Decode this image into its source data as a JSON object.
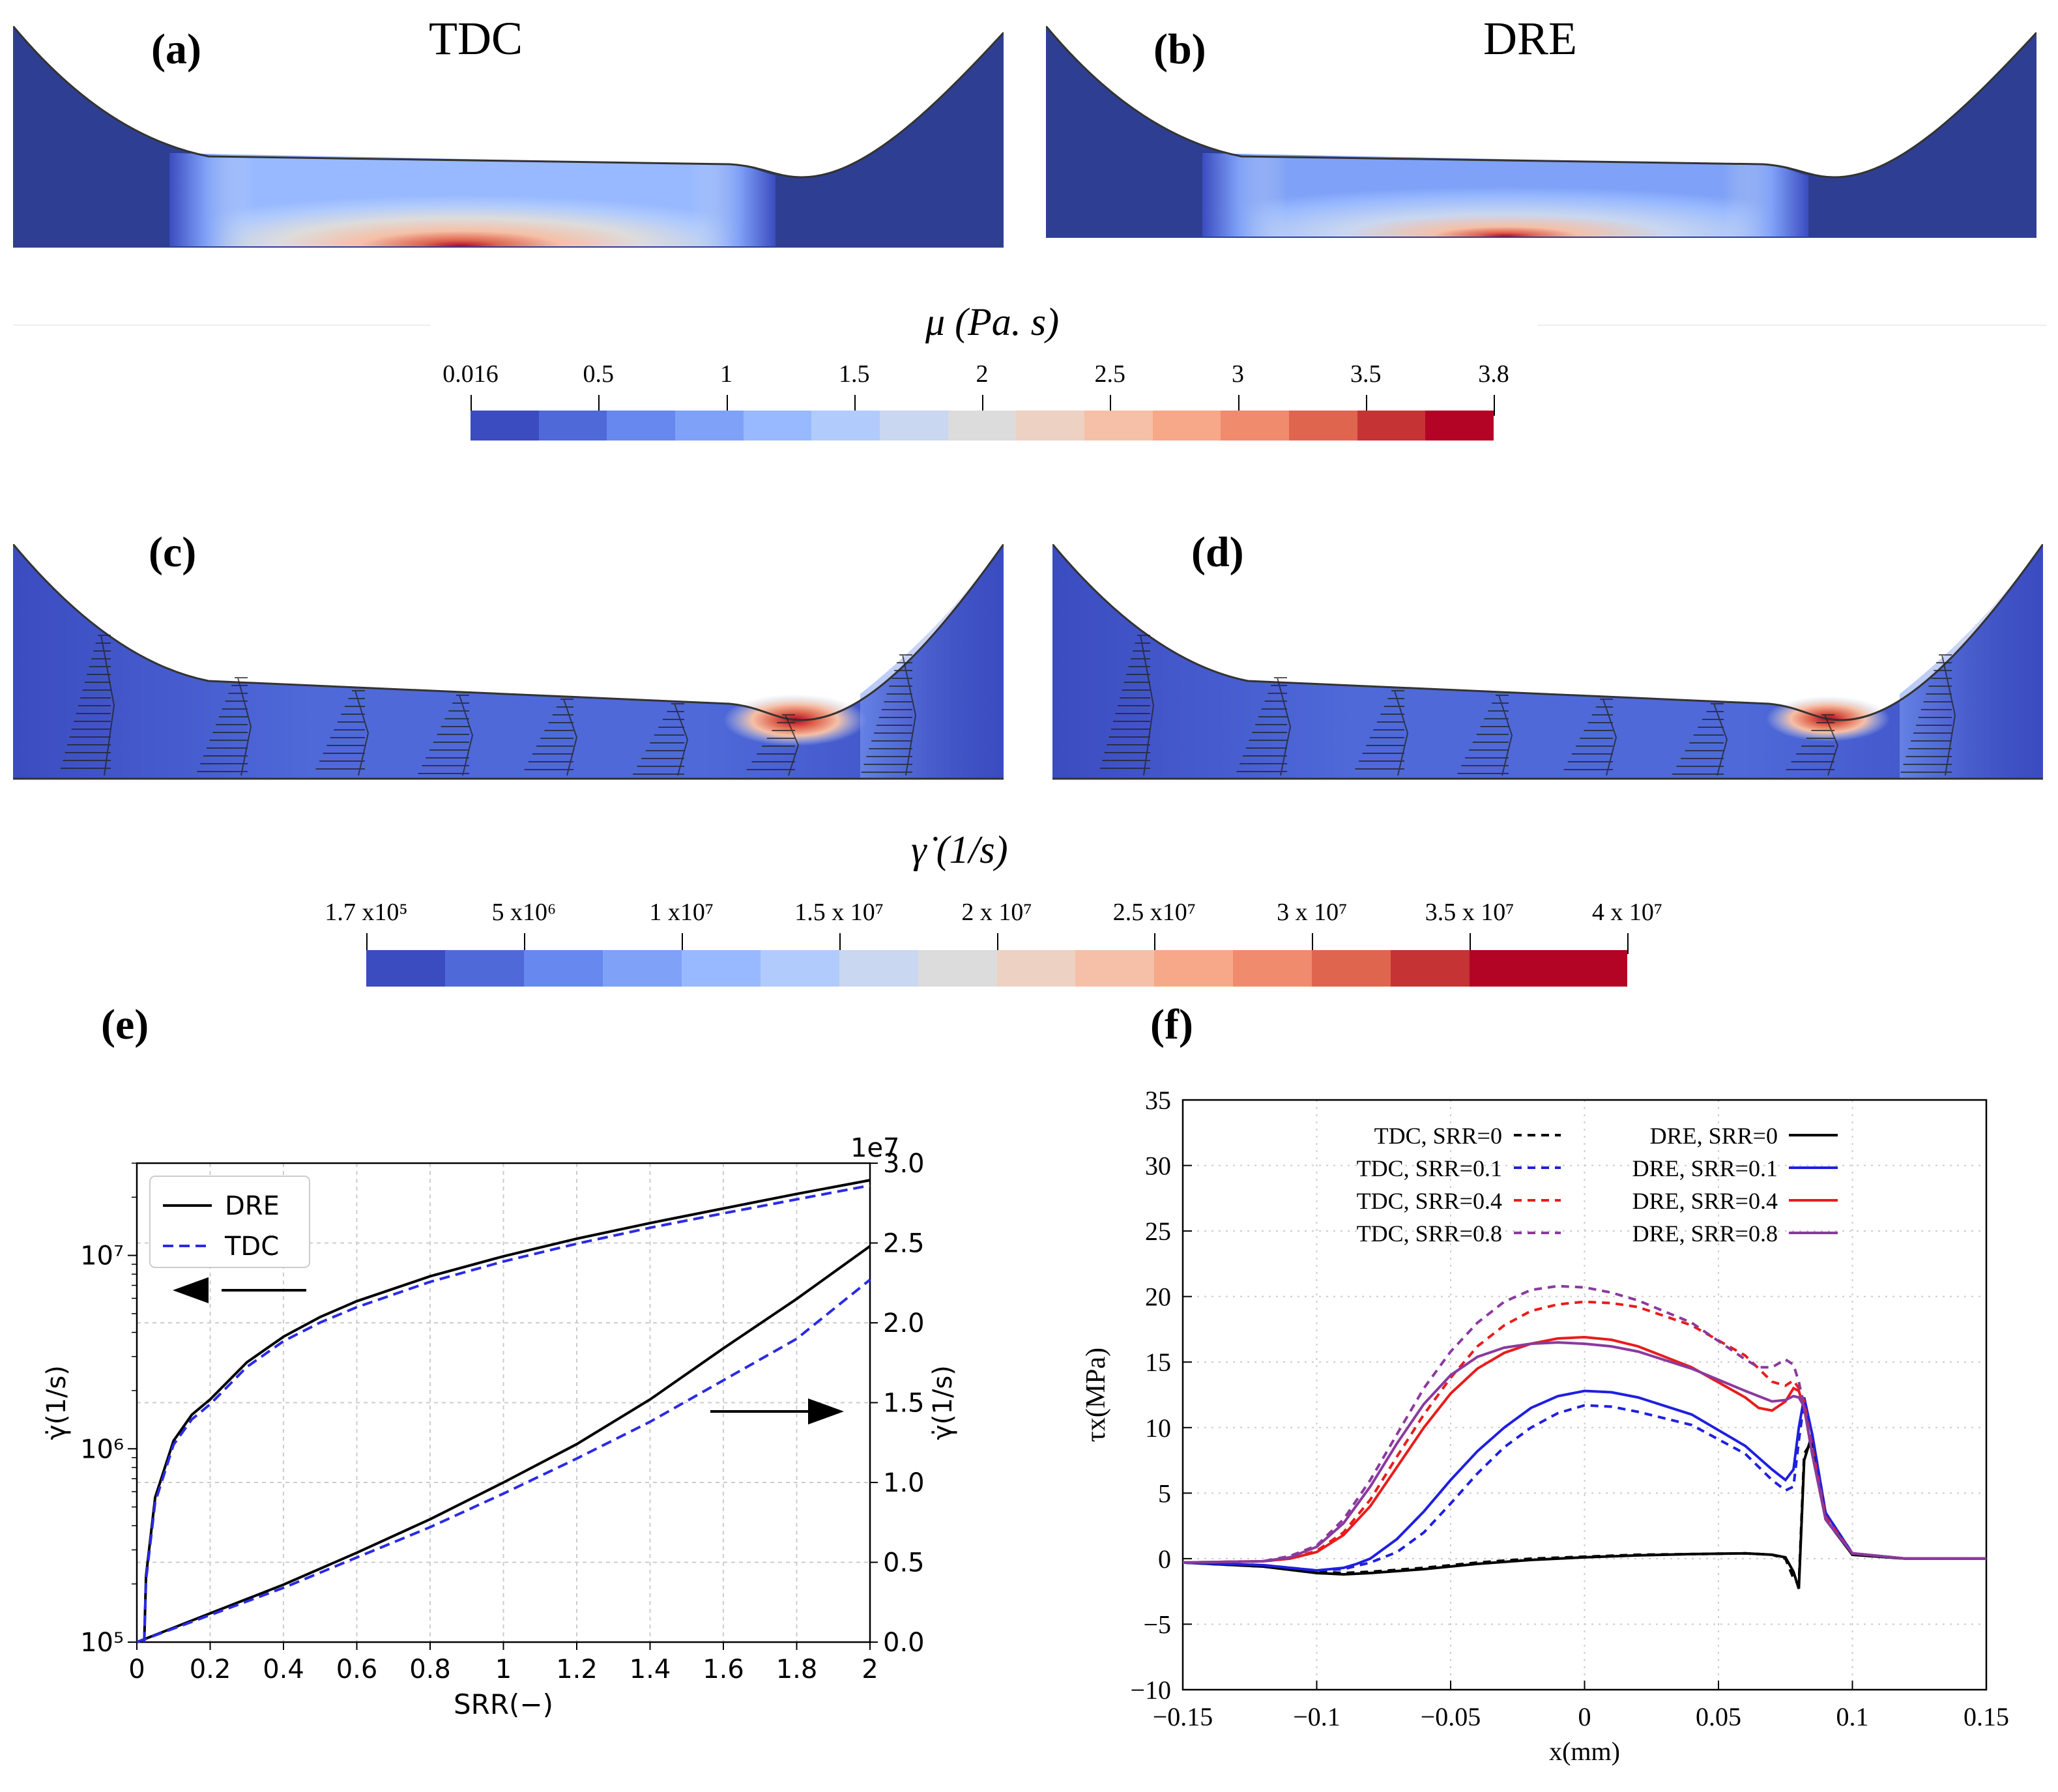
{
  "panels": {
    "a": {
      "label": "(a)",
      "title": "TDC"
    },
    "b": {
      "label": "(b)",
      "title": "DRE"
    },
    "c": {
      "label": "(c)"
    },
    "d": {
      "label": "(d)"
    },
    "e": {
      "label": "(e)"
    },
    "f": {
      "label": "(f)"
    }
  },
  "colorbar_mu": {
    "title": "μ (Pa. s)",
    "ticks": [
      "0.016",
      "0.5",
      "1",
      "1.5",
      "2",
      "2.5",
      "3",
      "3.5",
      "3.8"
    ],
    "colors": [
      "#3b4cc0",
      "#4f69d9",
      "#6788ee",
      "#7fa1f7",
      "#98b9ff",
      "#b1cbfc",
      "#c9d7f0",
      "#dddcdc",
      "#edd1c2",
      "#f5c0a7",
      "#f7a889",
      "#f08b6e",
      "#e0654f",
      "#c53334",
      "#b40426"
    ]
  },
  "colorbar_gamma": {
    "title": "γ̇ (1/s)",
    "ticks": [
      "1.7 x10⁵",
      "5 x10⁶",
      "1 x10⁷",
      "1.5 x 10⁷",
      "2 x 10⁷",
      "2.5 x10⁷",
      "3 x 10⁷",
      "3.5 x 10⁷",
      "4 x 10⁷"
    ],
    "colors": [
      "#3b4cc0",
      "#4f69d9",
      "#6788ee",
      "#7fa1f7",
      "#98b9ff",
      "#b1cbfc",
      "#c9d7f0",
      "#dddcdc",
      "#edd1c2",
      "#f5c0a7",
      "#f7a889",
      "#f08b6e",
      "#e0654f",
      "#c53334",
      "#b40426",
      "#b40426"
    ]
  },
  "chart_data": [
    {
      "id": "e",
      "type": "line",
      "xlabel": "SRR(−)",
      "ylabel_left": "γ̇(1/s)",
      "ylabel_right": "γ̇(1/s)",
      "right_axis_offset_label": "1e7",
      "xlim": [
        0,
        2
      ],
      "ylim_left_log": [
        100000,
        30000000
      ],
      "ylim_right": [
        0,
        3.0
      ],
      "x_ticks": [
        "0",
        "0.2",
        "0.4",
        "0.6",
        "0.8",
        "1",
        "1.2",
        "1.4",
        "1.6",
        "1.8",
        "2"
      ],
      "y_left_ticks": [
        "10⁵",
        "10⁶",
        "10⁷"
      ],
      "y_right_ticks": [
        "0.0",
        "0.5",
        "1.0",
        "1.5",
        "2.0",
        "2.5",
        "3.0"
      ],
      "legend": [
        "DRE",
        "TDC"
      ],
      "legend_position": "top-left",
      "series": [
        {
          "name": "DRE",
          "axis": "left",
          "style": "solid",
          "color": "#000000",
          "x": [
            0.02,
            0.025,
            0.05,
            0.1,
            0.15,
            0.2,
            0.3,
            0.4,
            0.5,
            0.6,
            0.8,
            1.0,
            1.2,
            1.4,
            1.6,
            1.8,
            2.0
          ],
          "y": [
            100000,
            220000,
            560000,
            1100000,
            1500000,
            1800000,
            2800000,
            3800000,
            4800000,
            5800000,
            7800000,
            9900000,
            12200000,
            14700000,
            17500000,
            20800000,
            24500000
          ]
        },
        {
          "name": "TDC",
          "axis": "left",
          "style": "dashed",
          "color": "#2a2ae6",
          "x": [
            0.02,
            0.025,
            0.05,
            0.1,
            0.15,
            0.2,
            0.3,
            0.4,
            0.5,
            0.6,
            0.8,
            1.0,
            1.2,
            1.4,
            1.6,
            1.8,
            2.0
          ],
          "y": [
            100000,
            210000,
            530000,
            1050000,
            1420000,
            1700000,
            2650000,
            3600000,
            4500000,
            5400000,
            7300000,
            9300000,
            11500000,
            13900000,
            16500000,
            19500000,
            23000000
          ]
        },
        {
          "name": "DRE",
          "axis": "right",
          "style": "solid",
          "color": "#000000",
          "x": [
            0.0,
            0.2,
            0.4,
            0.6,
            0.8,
            1.0,
            1.2,
            1.4,
            1.6,
            1.8,
            2.0
          ],
          "y": [
            0.0,
            0.18,
            0.36,
            0.56,
            0.77,
            1.0,
            1.24,
            1.52,
            1.84,
            2.15,
            2.48
          ]
        },
        {
          "name": "TDC",
          "axis": "right",
          "style": "dashed",
          "color": "#2a2ae6",
          "x": [
            0.0,
            0.2,
            0.4,
            0.6,
            0.8,
            1.0,
            1.2,
            1.4,
            1.6,
            1.8,
            2.0
          ],
          "y": [
            0.0,
            0.17,
            0.34,
            0.53,
            0.72,
            0.93,
            1.15,
            1.38,
            1.64,
            1.9,
            2.27
          ]
        }
      ],
      "annotations": [
        "arrow-left",
        "arrow-right"
      ]
    },
    {
      "id": "f",
      "type": "line",
      "xlabel": "x(mm)",
      "ylabel": "τx(MPa)",
      "xlim": [
        -0.15,
        0.15
      ],
      "ylim": [
        -10,
        35
      ],
      "x_ticks": [
        "−0.15",
        "−0.1",
        "−0.05",
        "0",
        "0.05",
        "0.1",
        "0.15"
      ],
      "y_ticks": [
        "−10",
        "−5",
        "0",
        "5",
        "10",
        "15",
        "20",
        "25",
        "30",
        "35"
      ],
      "grid": true,
      "legend_position": "top",
      "series": [
        {
          "name": "TDC, SRR=0",
          "style": "dashed",
          "color": "#000000",
          "x": [
            -0.15,
            -0.12,
            -0.1,
            -0.09,
            -0.08,
            -0.06,
            -0.04,
            -0.02,
            0.0,
            0.02,
            0.04,
            0.06,
            0.07,
            0.075,
            0.078,
            0.08,
            0.082,
            0.085,
            0.09,
            0.1,
            0.12,
            0.15
          ],
          "y": [
            -0.3,
            -0.6,
            -1.0,
            -1.1,
            -1.0,
            -0.7,
            -0.3,
            0.0,
            0.15,
            0.3,
            0.35,
            0.4,
            0.3,
            0.0,
            -1.5,
            -2.0,
            8.0,
            9.0,
            3.0,
            0.3,
            0.0,
            0.0
          ]
        },
        {
          "name": "DRE, SRR=0",
          "style": "solid",
          "color": "#000000",
          "x": [
            -0.15,
            -0.12,
            -0.1,
            -0.09,
            -0.08,
            -0.06,
            -0.04,
            -0.02,
            0.0,
            0.02,
            0.04,
            0.06,
            0.07,
            0.075,
            0.078,
            0.08,
            0.082,
            0.085,
            0.09,
            0.1,
            0.12,
            0.15
          ],
          "y": [
            -0.3,
            -0.6,
            -1.1,
            -1.2,
            -1.1,
            -0.8,
            -0.4,
            -0.1,
            0.1,
            0.25,
            0.35,
            0.4,
            0.3,
            0.1,
            -1.0,
            -2.3,
            7.5,
            9.5,
            3.0,
            0.3,
            0.0,
            0.0
          ]
        },
        {
          "name": "TDC, SRR=0.1",
          "style": "dashed",
          "color": "#1f1fe0",
          "x": [
            -0.15,
            -0.12,
            -0.1,
            -0.09,
            -0.08,
            -0.07,
            -0.06,
            -0.05,
            -0.04,
            -0.03,
            -0.02,
            -0.01,
            0.0,
            0.01,
            0.02,
            0.04,
            0.06,
            0.07,
            0.075,
            0.078,
            0.08,
            0.082,
            0.085,
            0.09,
            0.1,
            0.12,
            0.15
          ],
          "y": [
            -0.3,
            -0.5,
            -0.9,
            -0.8,
            -0.3,
            0.5,
            2.0,
            4.2,
            6.5,
            8.5,
            10.0,
            11.1,
            11.7,
            11.6,
            11.2,
            10.2,
            8.0,
            6.0,
            5.2,
            5.5,
            9.0,
            12.0,
            9.5,
            3.5,
            0.4,
            0.0,
            0.0
          ]
        },
        {
          "name": "DRE, SRR=0.1",
          "style": "solid",
          "color": "#1f1fe0",
          "x": [
            -0.15,
            -0.12,
            -0.1,
            -0.09,
            -0.085,
            -0.08,
            -0.07,
            -0.06,
            -0.05,
            -0.04,
            -0.03,
            -0.02,
            -0.01,
            0.0,
            0.01,
            0.02,
            0.04,
            0.06,
            0.07,
            0.075,
            0.078,
            0.08,
            0.082,
            0.085,
            0.09,
            0.1,
            0.12,
            0.15
          ],
          "y": [
            -0.3,
            -0.5,
            -0.9,
            -0.7,
            -0.4,
            0.0,
            1.5,
            3.6,
            6.0,
            8.2,
            10.0,
            11.5,
            12.4,
            12.8,
            12.7,
            12.3,
            11.0,
            8.6,
            6.8,
            6.0,
            6.8,
            10.0,
            12.3,
            9.5,
            3.5,
            0.4,
            0.0,
            0.0
          ]
        },
        {
          "name": "TDC, SRR=0.4",
          "style": "dashed",
          "color": "#e81c1c",
          "x": [
            -0.15,
            -0.12,
            -0.11,
            -0.1,
            -0.09,
            -0.08,
            -0.07,
            -0.06,
            -0.05,
            -0.04,
            -0.03,
            -0.02,
            -0.01,
            0.0,
            0.01,
            0.02,
            0.04,
            0.06,
            0.07,
            0.075,
            0.078,
            0.08,
            0.082,
            0.085,
            0.09,
            0.1,
            0.12,
            0.15
          ],
          "y": [
            -0.3,
            -0.2,
            0.0,
            0.6,
            2.0,
            4.5,
            7.8,
            11.0,
            13.8,
            16.2,
            17.8,
            18.9,
            19.4,
            19.6,
            19.5,
            19.2,
            17.8,
            15.5,
            13.5,
            13.2,
            13.6,
            13.0,
            12.0,
            8.5,
            3.2,
            0.4,
            0.0,
            0.0
          ]
        },
        {
          "name": "DRE, SRR=0.4",
          "style": "solid",
          "color": "#e81c1c",
          "x": [
            -0.15,
            -0.12,
            -0.11,
            -0.1,
            -0.09,
            -0.08,
            -0.07,
            -0.06,
            -0.05,
            -0.04,
            -0.03,
            -0.02,
            -0.01,
            0.0,
            0.01,
            0.02,
            0.04,
            0.06,
            0.065,
            0.07,
            0.075,
            0.078,
            0.08,
            0.082,
            0.085,
            0.09,
            0.1,
            0.12,
            0.15
          ],
          "y": [
            -0.3,
            -0.2,
            0.0,
            0.5,
            1.8,
            4.0,
            7.0,
            10.0,
            12.6,
            14.5,
            15.7,
            16.4,
            16.8,
            16.9,
            16.7,
            16.2,
            14.6,
            12.3,
            11.5,
            11.3,
            12.0,
            13.0,
            12.8,
            11.5,
            8.0,
            3.0,
            0.4,
            0.0,
            0.0
          ]
        },
        {
          "name": "TDC, SRR=0.8",
          "style": "dashed",
          "color": "#8a3a9e",
          "x": [
            -0.15,
            -0.12,
            -0.11,
            -0.1,
            -0.09,
            -0.08,
            -0.07,
            -0.06,
            -0.05,
            -0.04,
            -0.03,
            -0.02,
            -0.01,
            0.0,
            0.01,
            0.02,
            0.04,
            0.06,
            0.065,
            0.07,
            0.075,
            0.078,
            0.08,
            0.082,
            0.085,
            0.09,
            0.1,
            0.12,
            0.15
          ],
          "y": [
            -0.3,
            -0.2,
            0.2,
            1.0,
            3.0,
            6.0,
            9.5,
            13.0,
            15.8,
            18.0,
            19.6,
            20.5,
            20.8,
            20.7,
            20.3,
            19.7,
            18.0,
            15.2,
            14.6,
            14.6,
            15.2,
            14.8,
            13.5,
            11.5,
            8.0,
            3.0,
            0.4,
            0.0,
            0.0
          ]
        },
        {
          "name": "DRE, SRR=0.8",
          "style": "solid",
          "color": "#8a3a9e",
          "x": [
            -0.15,
            -0.12,
            -0.11,
            -0.1,
            -0.09,
            -0.08,
            -0.07,
            -0.06,
            -0.05,
            -0.04,
            -0.03,
            -0.02,
            -0.01,
            0.0,
            0.01,
            0.02,
            0.04,
            0.06,
            0.07,
            0.075,
            0.078,
            0.08,
            0.082,
            0.085,
            0.09,
            0.1,
            0.12,
            0.15
          ],
          "y": [
            -0.3,
            -0.2,
            0.1,
            0.9,
            2.7,
            5.5,
            8.8,
            11.8,
            14.0,
            15.4,
            16.1,
            16.4,
            16.5,
            16.4,
            16.2,
            15.8,
            14.5,
            12.8,
            12.0,
            12.1,
            12.4,
            12.3,
            11.6,
            8.0,
            3.0,
            0.4,
            0.0,
            0.0
          ]
        }
      ]
    }
  ]
}
